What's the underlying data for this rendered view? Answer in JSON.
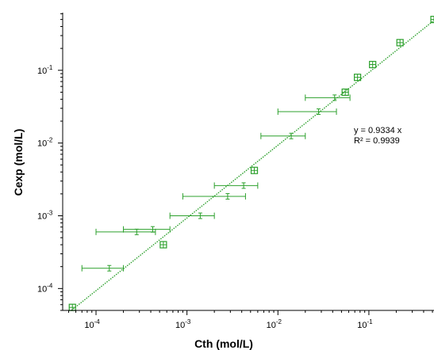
{
  "chart_data": {
    "type": "scatter",
    "xlabel": "Cth (mol/L)",
    "ylabel": "Cexp (mol/L)",
    "xscale": "log",
    "yscale": "log",
    "xlim": [
      4.3e-05,
      0.52
    ],
    "ylim": [
      5e-05,
      0.62
    ],
    "x_ticks": [
      {
        "base": "10",
        "exp": "-4",
        "value": 0.0001
      },
      {
        "base": "10",
        "exp": "-3",
        "value": 0.001
      },
      {
        "base": "10",
        "exp": "-2",
        "value": 0.01
      },
      {
        "base": "10",
        "exp": "-1",
        "value": 0.1
      }
    ],
    "y_ticks": [
      {
        "base": "10",
        "exp": "-4",
        "value": 0.0001
      },
      {
        "base": "10",
        "exp": "-3",
        "value": 0.001
      },
      {
        "base": "10",
        "exp": "-2",
        "value": 0.01
      },
      {
        "base": "10",
        "exp": "-1",
        "value": 0.1
      }
    ],
    "series": [
      {
        "color": "#2ca02c",
        "marker": "square-cross",
        "points": [
          {
            "x": 5.5e-05,
            "y": 5.5e-05,
            "xerr": [
              5.3e-05,
              5.8e-05
            ]
          },
          {
            "x": 0.00014,
            "y": 0.00019,
            "xerr": [
              7e-05,
              0.0002
            ]
          },
          {
            "x": 0.00028,
            "y": 0.0006,
            "xerr": [
              0.0001,
              0.00045
            ]
          },
          {
            "x": 0.00042,
            "y": 0.00065,
            "xerr": [
              0.0002,
              0.00065
            ]
          },
          {
            "x": 0.00055,
            "y": 0.0004,
            "xerr": [
              0.00052,
              0.00059
            ]
          },
          {
            "x": 0.0014,
            "y": 0.001,
            "xerr": [
              0.00065,
              0.002
            ]
          },
          {
            "x": 0.0028,
            "y": 0.00185,
            "xerr": [
              0.0009,
              0.0044
            ]
          },
          {
            "x": 0.0042,
            "y": 0.0026,
            "xerr": [
              0.002,
              0.006
            ]
          },
          {
            "x": 0.0055,
            "y": 0.0042,
            "xerr": [
              0.0052,
              0.0059
            ]
          },
          {
            "x": 0.014,
            "y": 0.0125,
            "xerr": [
              0.0065,
              0.02
            ]
          },
          {
            "x": 0.028,
            "y": 0.027,
            "xerr": [
              0.01,
              0.044
            ]
          },
          {
            "x": 0.042,
            "y": 0.042,
            "xerr": [
              0.02,
              0.062
            ]
          },
          {
            "x": 0.055,
            "y": 0.05,
            "xerr": [
              0.052,
              0.059
            ]
          },
          {
            "x": 0.075,
            "y": 0.08,
            "xerr": [
              0.072,
              0.078
            ]
          },
          {
            "x": 0.11,
            "y": 0.12,
            "xerr": [
              0.105,
              0.116
            ]
          },
          {
            "x": 0.22,
            "y": 0.24,
            "xerr": [
              0.21,
              0.23
            ]
          },
          {
            "x": 0.52,
            "y": 0.5,
            "xerr": [
              0.5,
              0.54
            ]
          }
        ]
      }
    ],
    "fit_line": {
      "slope": 0.9334,
      "color": "#2ca02c",
      "style": "dotted"
    },
    "annotation": {
      "equation": "y = 0.9334 x",
      "r2": "R² = 0.9939"
    }
  }
}
